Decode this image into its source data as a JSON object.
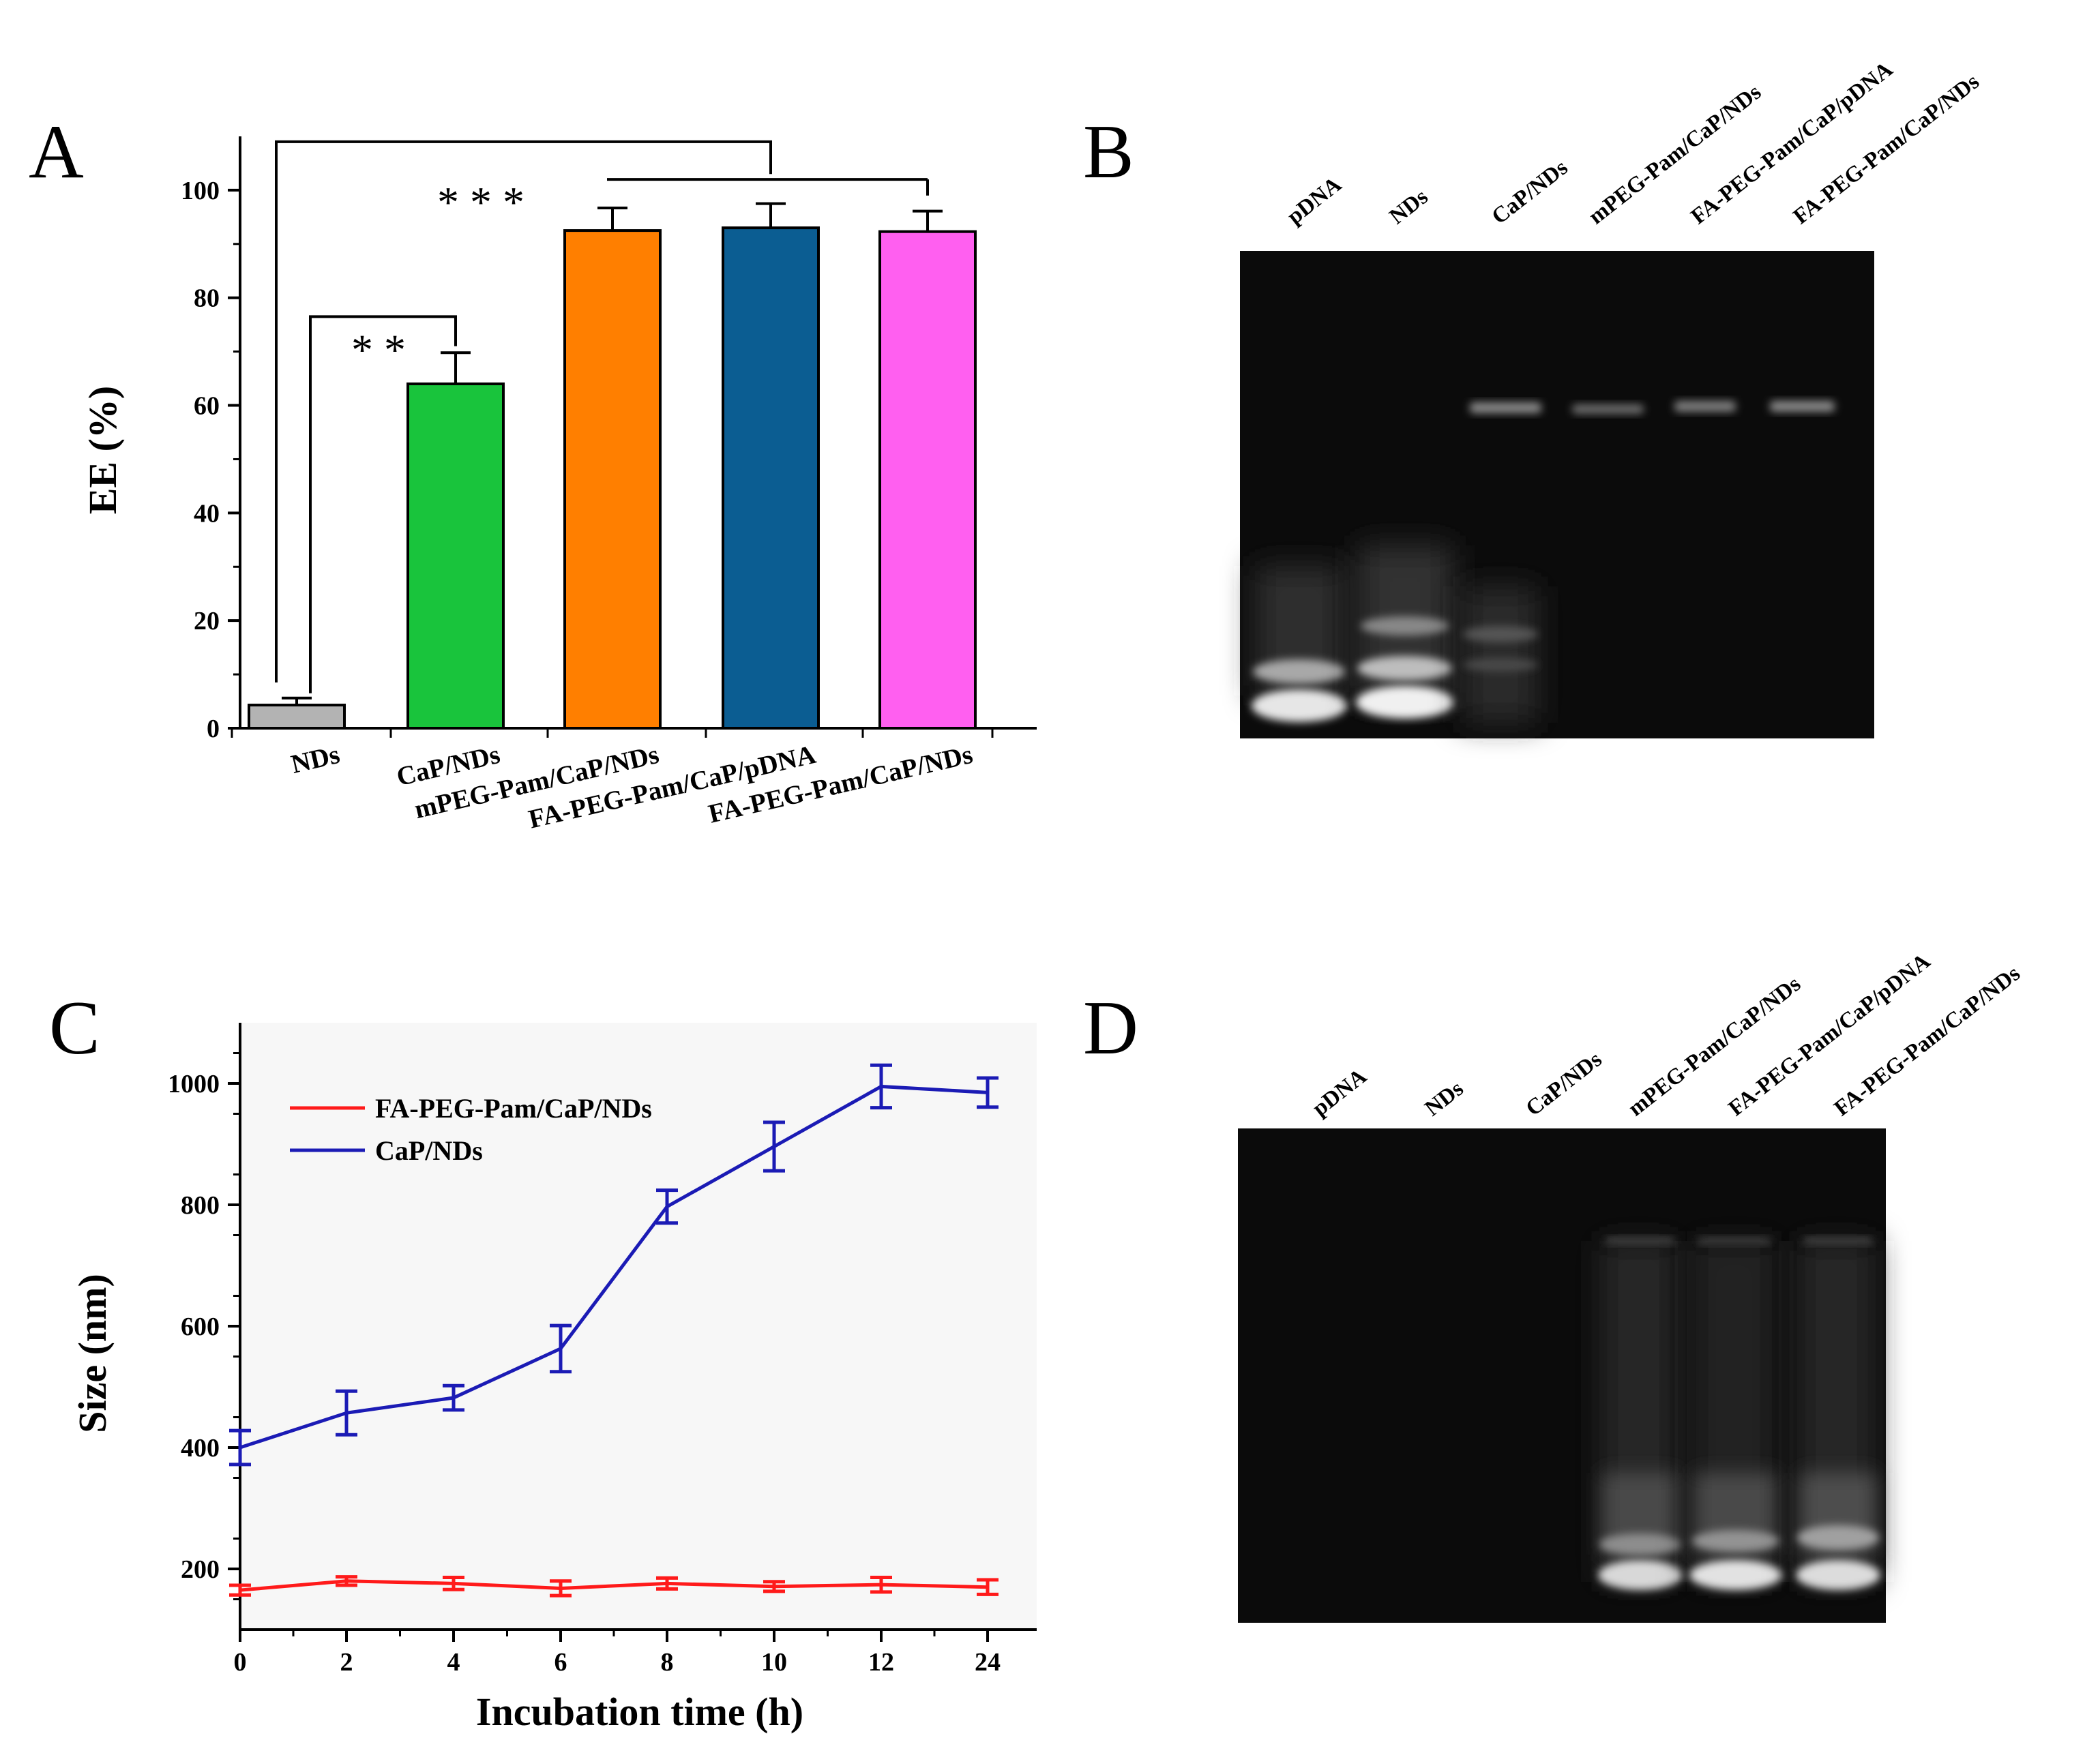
{
  "panels": {
    "a": "A",
    "b": "B",
    "c": "C",
    "d": "D"
  },
  "colors": {
    "bar_gray": "#b3b3b3",
    "bar_green": "#19c43c",
    "bar_orange": "#ff7f00",
    "bar_blue": "#0b5d92",
    "bar_pink": "#ff5ff0",
    "line_red": "#ff1a1a",
    "line_blue": "#1b1bb5",
    "plot_c_bg": "#f7f7f7",
    "gel_bg": "#0b0b0b"
  },
  "chart_data": [
    {
      "id": "A",
      "type": "bar",
      "title": "",
      "xlabel": "",
      "ylabel": "EE (%)",
      "ylim": [
        0,
        110
      ],
      "yticks": [
        0,
        20,
        40,
        60,
        80,
        100
      ],
      "categories": [
        "NDs",
        "CaP/NDs",
        "mPEG-Pam/CaP/NDs",
        "FA-PEG-Pam/CaP/pDNA",
        "FA-PEG-Pam/CaP/NDs"
      ],
      "values": [
        4.3,
        64.0,
        92.5,
        93.0,
        92.3
      ],
      "errors": [
        1.3,
        5.8,
        4.2,
        4.5,
        3.8
      ],
      "bar_colors": [
        "#b3b3b3",
        "#19c43c",
        "#ff7f00",
        "#0b5d92",
        "#ff5ff0"
      ],
      "significance": [
        {
          "label": "* *",
          "between": [
            "NDs",
            "CaP/NDs"
          ]
        },
        {
          "label": "* * *",
          "between": [
            "NDs",
            "mPEG-Pam/CaP/NDs"
          ]
        }
      ]
    },
    {
      "id": "C",
      "type": "line",
      "title": "",
      "xlabel": "Incubation time (h)",
      "ylabel": "Size (nm)",
      "x": [
        "0",
        "2",
        "4",
        "6",
        "8",
        "10",
        "12",
        "24"
      ],
      "ylim": [
        100,
        1100
      ],
      "yticks": [
        200,
        400,
        600,
        800,
        1000
      ],
      "legend": "top-left",
      "series": [
        {
          "name": "FA-PEG-Pam/CaP/NDs",
          "color": "#ff1a1a",
          "values": [
            165,
            180,
            176,
            168,
            176,
            171,
            174,
            170
          ],
          "errors": [
            8,
            7,
            10,
            12,
            9,
            8,
            12,
            12
          ]
        },
        {
          "name": "CaP/NDs",
          "color": "#1b1bb5",
          "values": [
            400,
            457,
            482,
            563,
            797,
            896,
            995,
            985
          ],
          "errors": [
            28,
            36,
            20,
            38,
            27,
            40,
            35,
            24
          ]
        }
      ]
    }
  ],
  "gel_b": {
    "lanes": [
      "pDNA",
      "NDs",
      "CaP/NDs",
      "mPEG-Pam/CaP/NDs",
      "FA-PEG-Pam/CaP/pDNA",
      "FA-PEG-Pam/CaP/NDs"
    ]
  },
  "gel_d": {
    "lanes": [
      "pDNA",
      "NDs",
      "CaP/NDs",
      "mPEG-Pam/CaP/NDs",
      "FA-PEG-Pam/CaP/pDNA",
      "FA-PEG-Pam/CaP/NDs"
    ]
  }
}
